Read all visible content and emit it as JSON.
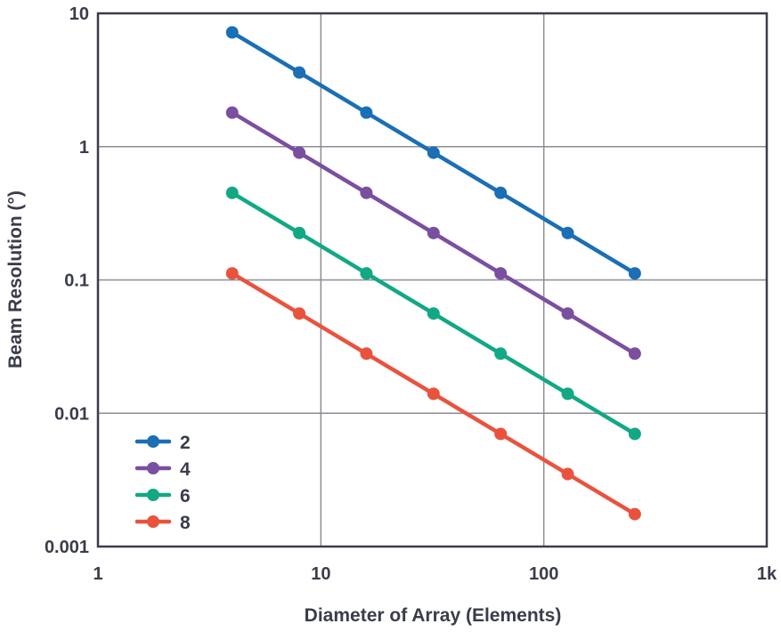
{
  "chart_data": {
    "type": "line",
    "title": "",
    "xlabel": "Diameter of Array (Elements)",
    "ylabel": "Beam Resolution (°)",
    "xscale": "log",
    "yscale": "log",
    "xlim": [
      1,
      1000
    ],
    "ylim": [
      0.001,
      10
    ],
    "x_ticks": [
      1,
      10,
      100,
      1000
    ],
    "x_tick_labels": [
      "1",
      "10",
      "100",
      "1k"
    ],
    "y_ticks": [
      10,
      1,
      0.1,
      0.01,
      0.001
    ],
    "y_tick_labels": [
      "10",
      "1",
      "0.1",
      "0.01",
      "0.001"
    ],
    "grid": true,
    "legend_position": "bottom-left",
    "x": [
      4,
      8,
      16,
      32,
      64,
      128,
      256
    ],
    "series": [
      {
        "name": "2",
        "color": "#1a6fb5",
        "values": [
          7.2,
          3.6,
          1.8,
          0.9,
          0.45,
          0.225,
          0.112
        ]
      },
      {
        "name": "4",
        "color": "#7b4fa0",
        "values": [
          1.8,
          0.9,
          0.45,
          0.225,
          0.112,
          0.056,
          0.028
        ]
      },
      {
        "name": "6",
        "color": "#12a884",
        "values": [
          0.45,
          0.225,
          0.112,
          0.056,
          0.028,
          0.014,
          0.007
        ]
      },
      {
        "name": "8",
        "color": "#e9533e",
        "values": [
          0.112,
          0.056,
          0.028,
          0.014,
          0.007,
          0.0035,
          0.00175
        ]
      }
    ]
  }
}
